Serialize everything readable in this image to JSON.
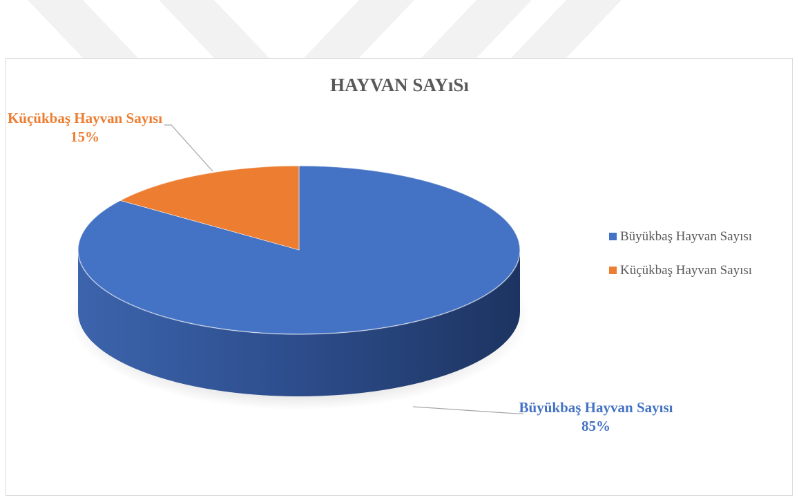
{
  "chart_data": {
    "type": "pie",
    "style": "3d",
    "title": "HAYVAN SAYıSı",
    "categories": [
      "Büyükbaş Hayvan Sayısı",
      "Küçükbaş Hayvan Sayısı"
    ],
    "values": [
      85,
      15
    ],
    "data_labels": [
      {
        "category": "Büyükbaş Hayvan Sayısı",
        "value": "85%"
      },
      {
        "category": "Küçükbaş Hayvan Sayısı",
        "value": "15%"
      }
    ],
    "colors": [
      "#4472c4",
      "#ed7d31"
    ],
    "legend_position": "right"
  }
}
